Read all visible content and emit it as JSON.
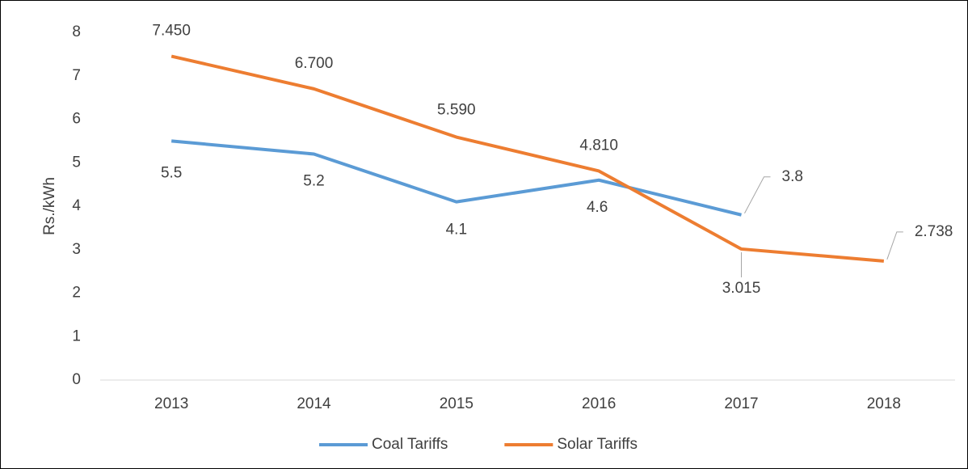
{
  "chart_data": {
    "type": "line",
    "categories": [
      "2013",
      "2014",
      "2015",
      "2016",
      "2017",
      "2018"
    ],
    "y_label": "Rs./kWh",
    "series": [
      {
        "name": "Coal Tariffs",
        "color": "#5b9bd5",
        "values": [
          5.5,
          5.2,
          4.1,
          4.6,
          3.8,
          null
        ]
      },
      {
        "name": "Solar Tariffs",
        "color": "#ed7d31",
        "values": [
          7.45,
          6.7,
          5.59,
          4.81,
          3.015,
          2.738
        ],
        "value_labels": [
          "7.450",
          "6.700",
          "5.590",
          "4.810",
          "3.015",
          "2.738"
        ]
      }
    ],
    "ylim": [
      0,
      8
    ],
    "yticks": [
      0,
      1,
      2,
      3,
      4,
      5,
      6,
      7,
      8
    ],
    "grid": false,
    "legend": "bottom"
  }
}
